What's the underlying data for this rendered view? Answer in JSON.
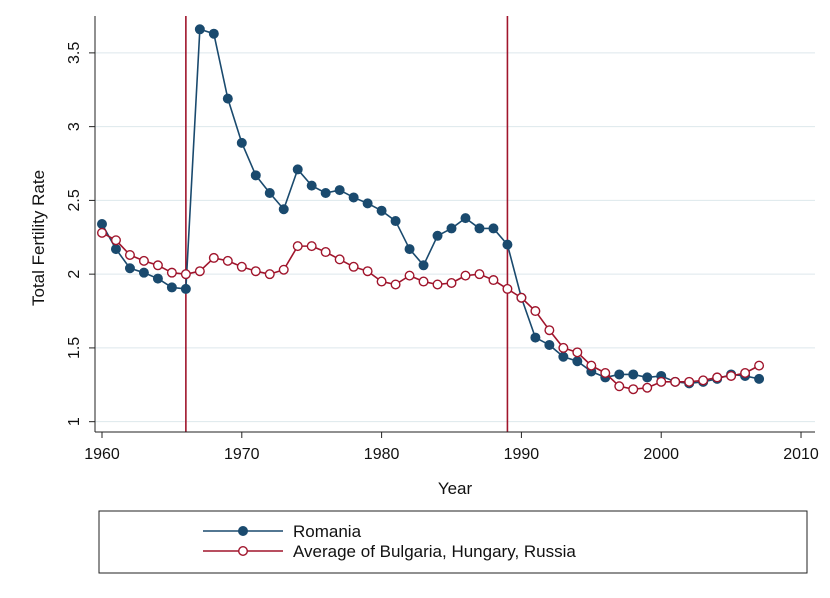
{
  "chart_data": {
    "type": "line",
    "title": "",
    "xlabel": "Year",
    "ylabel": "Total Fertility Rate",
    "xlim": [
      1959.5,
      2011
    ],
    "ylim": [
      0.93,
      3.75
    ],
    "x_ticks": [
      1960,
      1970,
      1980,
      1990,
      2000,
      2010
    ],
    "x_tick_labels": [
      "1960",
      "1970",
      "1980",
      "1990",
      "2000",
      "2010"
    ],
    "y_ticks": [
      1,
      1.5,
      2,
      2.5,
      3,
      3.5
    ],
    "y_tick_labels": [
      "1",
      "1.5",
      "2",
      "2.5",
      "3",
      "3.5"
    ],
    "grid": true,
    "legend_position": "bottom",
    "vertical_lines": [
      {
        "x": 1966,
        "color": "#a0152c"
      },
      {
        "x": 1989,
        "color": "#a0152c"
      }
    ],
    "series": [
      {
        "name": "Romania",
        "color": "#1a4a6e",
        "marker": "filled-circle",
        "x": [
          1960,
          1961,
          1962,
          1963,
          1964,
          1965,
          1966,
          1967,
          1968,
          1969,
          1970,
          1971,
          1972,
          1973,
          1974,
          1975,
          1976,
          1977,
          1978,
          1979,
          1980,
          1981,
          1982,
          1983,
          1984,
          1985,
          1986,
          1987,
          1988,
          1989,
          1990,
          1991,
          1992,
          1993,
          1994,
          1995,
          1996,
          1997,
          1998,
          1999,
          2000,
          2001,
          2002,
          2003,
          2004,
          2005,
          2006,
          2007
        ],
        "values": [
          2.34,
          2.17,
          2.04,
          2.01,
          1.97,
          1.91,
          1.9,
          3.66,
          3.63,
          3.19,
          2.89,
          2.67,
          2.55,
          2.44,
          2.71,
          2.6,
          2.55,
          2.57,
          2.52,
          2.48,
          2.43,
          2.36,
          2.17,
          2.06,
          2.26,
          2.31,
          2.38,
          2.31,
          2.31,
          2.2,
          1.84,
          1.57,
          1.52,
          1.44,
          1.41,
          1.34,
          1.3,
          1.32,
          1.32,
          1.3,
          1.31,
          1.27,
          1.26,
          1.27,
          1.29,
          1.32,
          1.31,
          1.29
        ]
      },
      {
        "name": "Average of Bulgaria, Hungary, Russia",
        "color": "#a0152c",
        "marker": "hollow-circle",
        "x": [
          1960,
          1961,
          1962,
          1963,
          1964,
          1965,
          1966,
          1967,
          1968,
          1969,
          1970,
          1971,
          1972,
          1973,
          1974,
          1975,
          1976,
          1977,
          1978,
          1979,
          1980,
          1981,
          1982,
          1983,
          1984,
          1985,
          1986,
          1987,
          1988,
          1989,
          1990,
          1991,
          1992,
          1993,
          1994,
          1995,
          1996,
          1997,
          1998,
          1999,
          2000,
          2001,
          2002,
          2003,
          2004,
          2005,
          2006,
          2007
        ],
        "values": [
          2.28,
          2.23,
          2.13,
          2.09,
          2.06,
          2.01,
          2.0,
          2.02,
          2.11,
          2.09,
          2.05,
          2.02,
          2.0,
          2.03,
          2.19,
          2.19,
          2.15,
          2.1,
          2.05,
          2.02,
          1.95,
          1.93,
          1.99,
          1.95,
          1.93,
          1.94,
          1.99,
          2.0,
          1.96,
          1.9,
          1.84,
          1.75,
          1.62,
          1.5,
          1.47,
          1.38,
          1.33,
          1.24,
          1.22,
          1.23,
          1.27,
          1.27,
          1.27,
          1.28,
          1.3,
          1.31,
          1.33,
          1.38
        ]
      }
    ]
  }
}
